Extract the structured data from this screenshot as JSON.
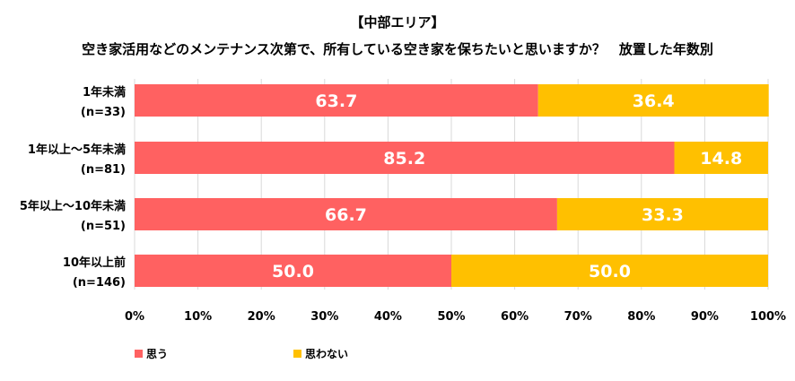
{
  "chart_data": {
    "type": "bar",
    "orientation": "horizontal",
    "stacked": true,
    "title": "【中部エリア】",
    "subtitle": "空き家活用などのメンテナンス次第で、所有している空き家を保ちたいと思いますか？　放置した年数別",
    "categories": [
      [
        "1年未満",
        "(n=33)"
      ],
      [
        "1年以上～5年未満",
        "(n=81)"
      ],
      [
        "5年以上～10年未満",
        "(n=51)"
      ],
      [
        "10年以上前",
        "(n=146)"
      ]
    ],
    "series": [
      {
        "name": "思う",
        "color": "#FF6161",
        "values": [
          63.7,
          85.2,
          66.7,
          50.0
        ],
        "labels": [
          "63.7",
          "85.2",
          "66.7",
          "50.0"
        ]
      },
      {
        "name": "思わない",
        "color": "#FFC000",
        "values": [
          36.4,
          14.8,
          33.3,
          50.0
        ],
        "labels": [
          "36.4",
          "14.8",
          "33.3",
          "50.0"
        ]
      }
    ],
    "xlim": [
      0,
      100
    ],
    "x_ticks": [
      "0%",
      "10%",
      "20%",
      "30%",
      "40%",
      "50%",
      "60%",
      "70%",
      "80%",
      "90%",
      "100%"
    ],
    "grid": true,
    "legend": "bottom-left"
  }
}
